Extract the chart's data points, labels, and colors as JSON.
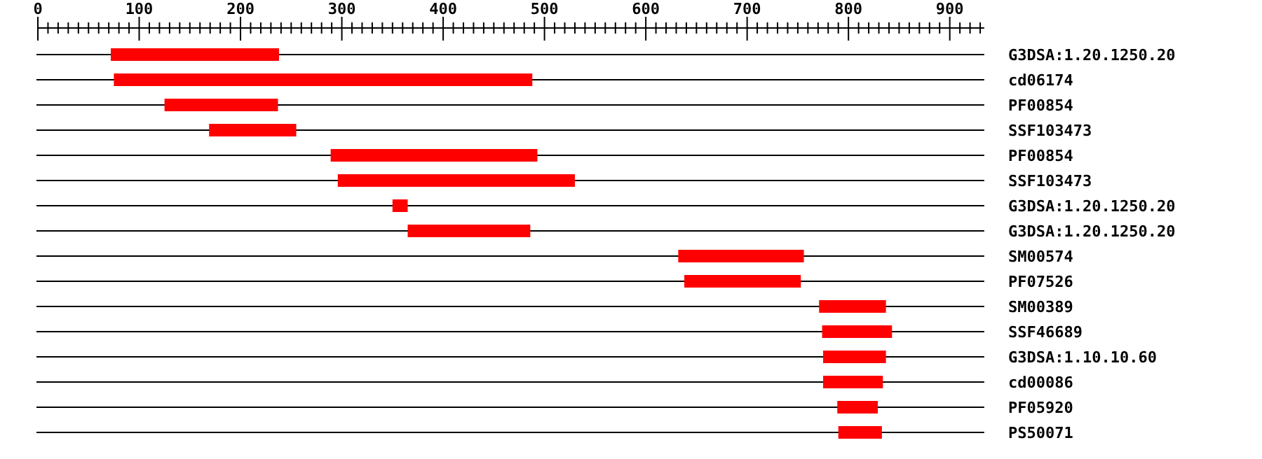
{
  "chart_data": {
    "type": "bar",
    "orientation": "horizontal",
    "grid": "y",
    "categories": [
      "G3DSA:1.20.1250.20",
      "cd06174",
      "PF00854",
      "SSF103473",
      "PF00854",
      "SSF103473",
      "G3DSA:1.20.1250.20",
      "G3DSA:1.20.1250.20",
      "SM00574",
      "PF07526",
      "SM00389",
      "SSF46689",
      "G3DSA:1.10.10.60",
      "cd00086",
      "PF05920",
      "PS50071"
    ],
    "base": [
      72,
      75,
      125,
      169,
      289,
      296,
      350,
      365,
      632,
      638,
      771,
      774,
      775,
      775,
      789,
      790
    ],
    "values": [
      166,
      413,
      112,
      86,
      204,
      234,
      15,
      121,
      124,
      115,
      66,
      69,
      62,
      59,
      40,
      43
    ],
    "color": "#ff0000",
    "xlim": [
      0,
      934
    ],
    "xticks": [
      0,
      {
        "value": 10,
        "label": null
      },
      {
        "value": 20,
        "label": null
      },
      {
        "value": 30,
        "label": null
      },
      {
        "value": 40,
        "label": null
      },
      {
        "value": 50,
        "label": null
      },
      {
        "value": 60,
        "label": null
      },
      {
        "value": 70,
        "label": null
      },
      {
        "value": 80,
        "label": null
      },
      {
        "value": 90,
        "label": null
      },
      100,
      {
        "value": 110,
        "label": null
      },
      {
        "value": 120,
        "label": null
      },
      {
        "value": 130,
        "label": null
      },
      {
        "value": 140,
        "label": null
      },
      {
        "value": 150,
        "label": null
      },
      {
        "value": 160,
        "label": null
      },
      {
        "value": 170,
        "label": null
      },
      {
        "value": 180,
        "label": null
      },
      {
        "value": 190,
        "label": null
      },
      200,
      {
        "value": 210,
        "label": null
      },
      {
        "value": 220,
        "label": null
      },
      {
        "value": 230,
        "label": null
      },
      {
        "value": 240,
        "label": null
      },
      {
        "value": 250,
        "label": null
      },
      {
        "value": 260,
        "label": null
      },
      {
        "value": 270,
        "label": null
      },
      {
        "value": 280,
        "label": null
      },
      {
        "value": 290,
        "label": null
      },
      300,
      {
        "value": 310,
        "label": null
      },
      {
        "value": 320,
        "label": null
      },
      {
        "value": 330,
        "label": null
      },
      {
        "value": 340,
        "label": null
      },
      {
        "value": 350,
        "label": null
      },
      {
        "value": 360,
        "label": null
      },
      {
        "value": 370,
        "label": null
      },
      {
        "value": 380,
        "label": null
      },
      {
        "value": 390,
        "label": null
      },
      400,
      {
        "value": 410,
        "label": null
      },
      {
        "value": 420,
        "label": null
      },
      {
        "value": 430,
        "label": null
      },
      {
        "value": 440,
        "label": null
      },
      {
        "value": 450,
        "label": null
      },
      {
        "value": 460,
        "label": null
      },
      {
        "value": 470,
        "label": null
      },
      {
        "value": 480,
        "label": null
      },
      {
        "value": 490,
        "label": null
      },
      500,
      {
        "value": 510,
        "label": null
      },
      {
        "value": 520,
        "label": null
      },
      {
        "value": 530,
        "label": null
      },
      {
        "value": 540,
        "label": null
      },
      {
        "value": 550,
        "label": null
      },
      {
        "value": 560,
        "label": null
      },
      {
        "value": 570,
        "label": null
      },
      {
        "value": 580,
        "label": null
      },
      {
        "value": 590,
        "label": null
      },
      600,
      {
        "value": 610,
        "label": null
      },
      {
        "value": 620,
        "label": null
      },
      {
        "value": 630,
        "label": null
      },
      {
        "value": 640,
        "label": null
      },
      {
        "value": 650,
        "label": null
      },
      {
        "value": 660,
        "label": null
      },
      {
        "value": 670,
        "label": null
      },
      {
        "value": 680,
        "label": null
      },
      {
        "value": 690,
        "label": null
      },
      700,
      {
        "value": 710,
        "label": null
      },
      {
        "value": 720,
        "label": null
      },
      {
        "value": 730,
        "label": null
      },
      {
        "value": 740,
        "label": null
      },
      {
        "value": 750,
        "label": null
      },
      {
        "value": 760,
        "label": null
      },
      {
        "value": 770,
        "label": null
      },
      {
        "value": 780,
        "label": null
      },
      {
        "value": 790,
        "label": null
      },
      800,
      {
        "value": 810,
        "label": null
      },
      {
        "value": 820,
        "label": null
      },
      {
        "value": 830,
        "label": null
      },
      {
        "value": 840,
        "label": null
      },
      {
        "value": 850,
        "label": null
      },
      {
        "value": 860,
        "label": null
      },
      {
        "value": 870,
        "label": null
      },
      {
        "value": 880,
        "label": null
      },
      {
        "value": 890,
        "label": null
      },
      900,
      {
        "value": 910,
        "label": null
      },
      {
        "value": 920,
        "label": null
      },
      {
        "value": 930,
        "label": null
      }
    ]
  }
}
